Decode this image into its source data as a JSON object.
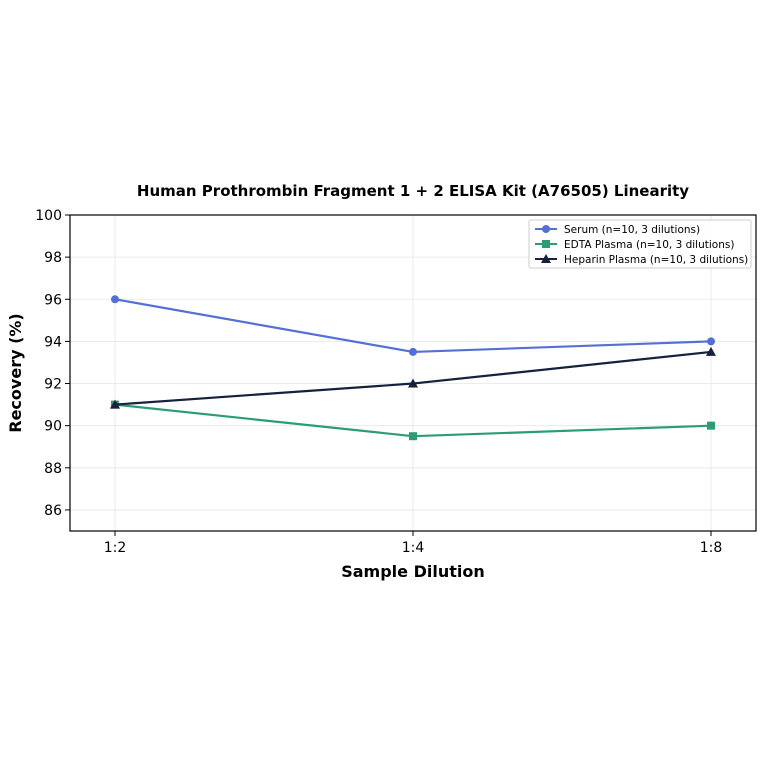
{
  "chart_data": {
    "type": "line",
    "title": "Human Prothrombin Fragment 1 + 2 ELISA Kit (A76505) Linearity",
    "xlabel": "Sample Dilution",
    "ylabel": "Recovery (%)",
    "categories": [
      "1:2",
      "1:4",
      "1:8"
    ],
    "ylim": [
      85,
      100
    ],
    "yticks": [
      86,
      88,
      90,
      92,
      94,
      96,
      98,
      100
    ],
    "grid": true,
    "legend_position": "top-right",
    "series": [
      {
        "name": "Serum (n=10, 3 dilutions)",
        "values": [
          96.0,
          93.5,
          94.0
        ],
        "color": "#5470d6",
        "marker": "circle"
      },
      {
        "name": "EDTA Plasma (n=10, 3 dilutions)",
        "values": [
          91.0,
          89.5,
          90.0
        ],
        "color": "#2a9d74",
        "marker": "square"
      },
      {
        "name": "Heparin Plasma (n=10, 3 dilutions)",
        "values": [
          91.0,
          92.0,
          93.5
        ],
        "color": "#16213e",
        "marker": "triangle"
      }
    ]
  }
}
